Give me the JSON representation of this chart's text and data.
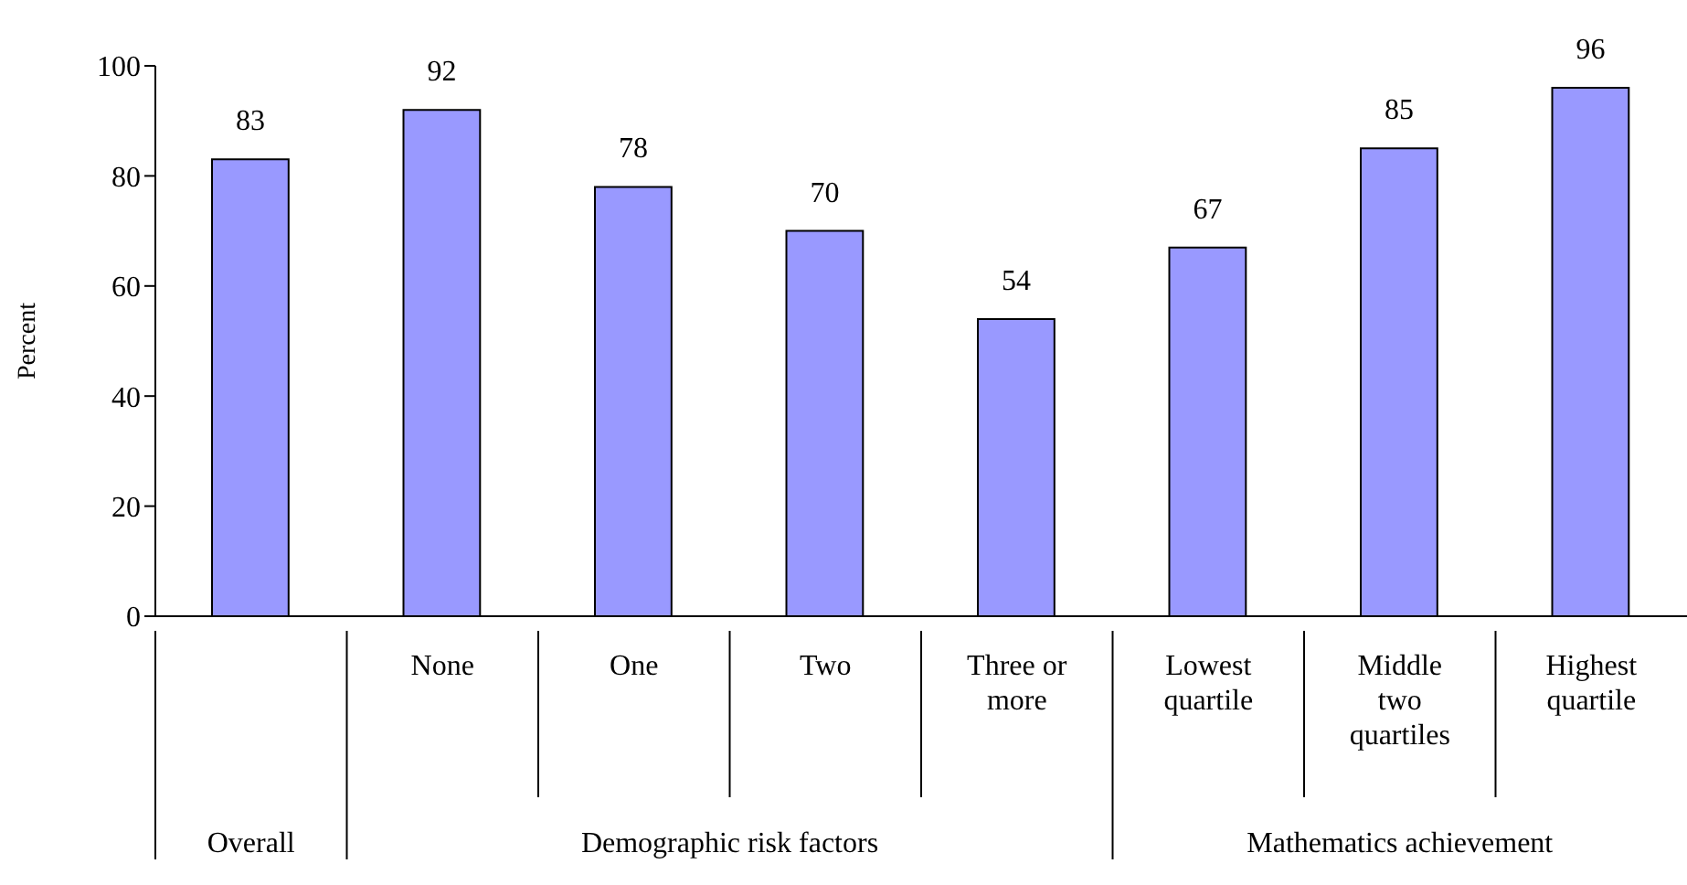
{
  "chart_data": {
    "type": "bar",
    "ylabel": "Percent",
    "categories": [
      null,
      "None",
      "One",
      "Two",
      "Three or more",
      "Lowest quartile",
      "Middle two quartiles",
      "Highest quartile"
    ],
    "values": [
      83,
      92,
      78,
      70,
      54,
      67,
      85,
      96
    ],
    "color": "#9999ff",
    "ylim": [
      0,
      100
    ],
    "yticks": [
      0,
      20,
      40,
      60,
      80,
      100
    ],
    "data_labels": true,
    "grid": false,
    "annotations": [
      "Overall",
      "Demographic risk factors",
      "Mathematics achievement"
    ]
  }
}
